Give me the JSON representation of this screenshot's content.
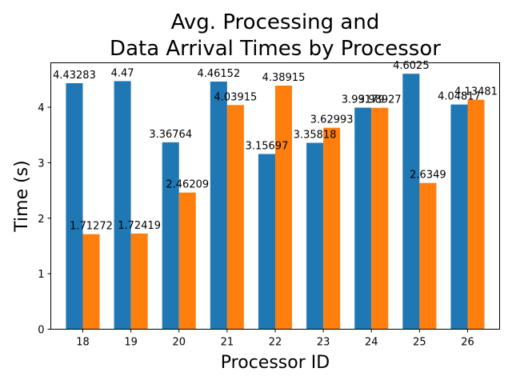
{
  "chart_data": {
    "type": "bar",
    "title_lines": [
      "Avg. Processing and",
      "Data Arrival Times by Processor"
    ],
    "xlabel": "Processor ID",
    "ylabel": "Time (s)",
    "categories": [
      "18",
      "19",
      "20",
      "21",
      "22",
      "23",
      "24",
      "25",
      "26"
    ],
    "series": [
      {
        "color": "#1f77b4",
        "values": [
          4.43283,
          4.47,
          3.36764,
          4.46152,
          3.15697,
          3.35818,
          3.99179,
          4.6025,
          4.04817
        ],
        "labels": [
          "4.43283",
          "4.47",
          "3.36764",
          "4.46152",
          "3.15697",
          "3.35818",
          "3.99179",
          "4.6025",
          "4.04817"
        ]
      },
      {
        "color": "#ff7f0e",
        "values": [
          1.71272,
          1.72419,
          2.46209,
          4.03915,
          4.38915,
          3.62993,
          3.98927,
          2.6349,
          4.13481
        ],
        "labels": [
          "1.71272",
          "1.72419",
          "2.46209",
          "4.03915",
          "4.38915",
          "3.62993",
          "3.98927",
          "2.6349",
          "4.13481"
        ]
      }
    ],
    "ylim": [
      0,
      4.8
    ],
    "yticks": [
      "0",
      "1",
      "2",
      "3",
      "4"
    ],
    "grid": false,
    "legend": "none"
  }
}
